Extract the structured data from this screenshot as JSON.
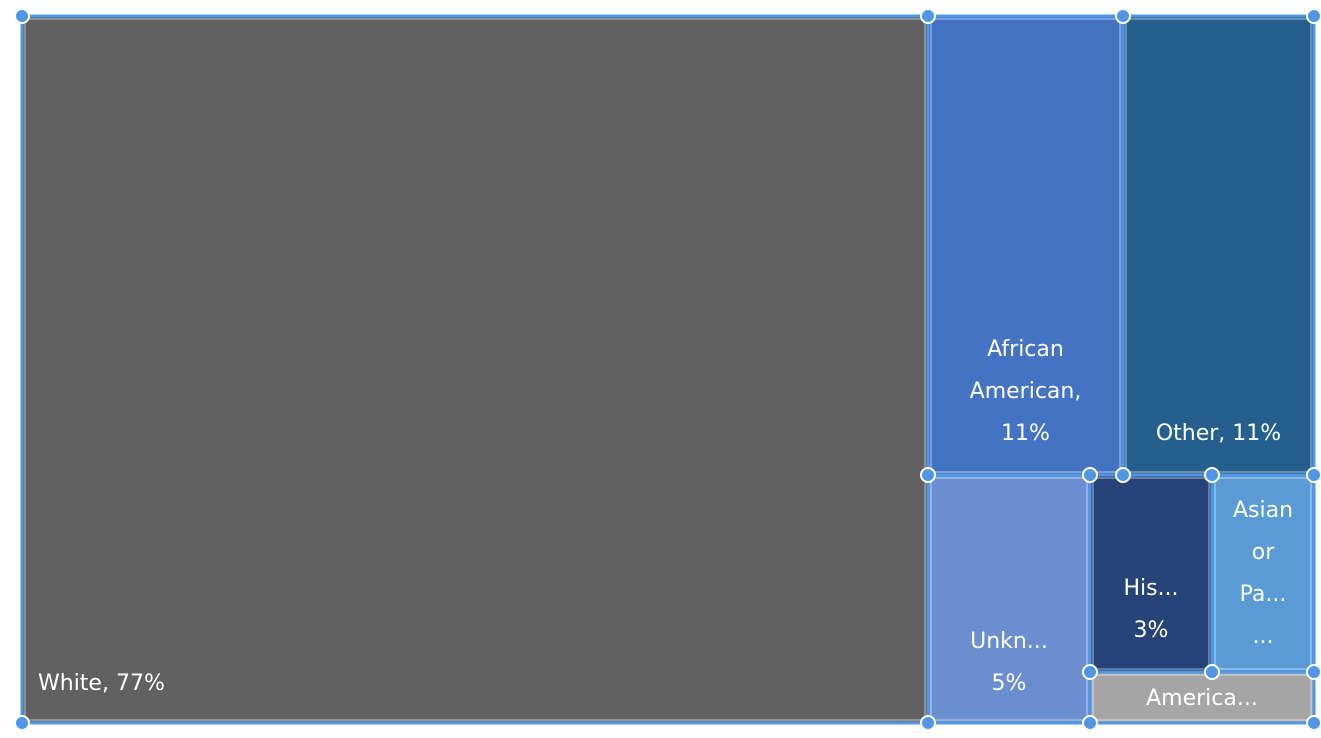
{
  "chart_data": {
    "type": "treemap",
    "title": "",
    "colors": {
      "selection": "#4f97e6",
      "handle_fill": "#4f97e6",
      "handle_stroke": "#ffffff",
      "background": "#ffffff"
    },
    "nodes": [
      {
        "id": "white",
        "category": "White",
        "value": 77,
        "color": "#616161",
        "label_lines": [
          "White, 77%"
        ],
        "label_align": "start"
      },
      {
        "id": "african-american",
        "category": "African American",
        "value": 11,
        "color": "#4573c4",
        "label_lines": [
          "African",
          "American,",
          "11%"
        ],
        "label_align": "middle"
      },
      {
        "id": "other",
        "category": "Other",
        "value": 11,
        "color": "#255f8e",
        "label_lines": [
          "Other, 11%"
        ],
        "label_align": "middle"
      },
      {
        "id": "unknown",
        "category": "Unknown",
        "value": 5,
        "color": "#6a8ecf",
        "label_lines": [
          "Unkn...",
          "5%"
        ],
        "label_align": "middle"
      },
      {
        "id": "hispanic",
        "category": "Hispanic",
        "value": 3,
        "color": "#264478",
        "label_lines": [
          "His...",
          "3%"
        ],
        "label_align": "middle"
      },
      {
        "id": "asian-pacific",
        "category": "Asian or Pacific",
        "value": 2,
        "color": "#5b9bd5",
        "label_lines": [
          "Asian",
          "or",
          "Pa...",
          "..."
        ],
        "label_align": "middle"
      },
      {
        "id": "american-indian",
        "category": "American",
        "value": 1,
        "color": "#a5a5a5",
        "label_lines": [
          "America..."
        ],
        "label_align": "middle"
      }
    ]
  }
}
